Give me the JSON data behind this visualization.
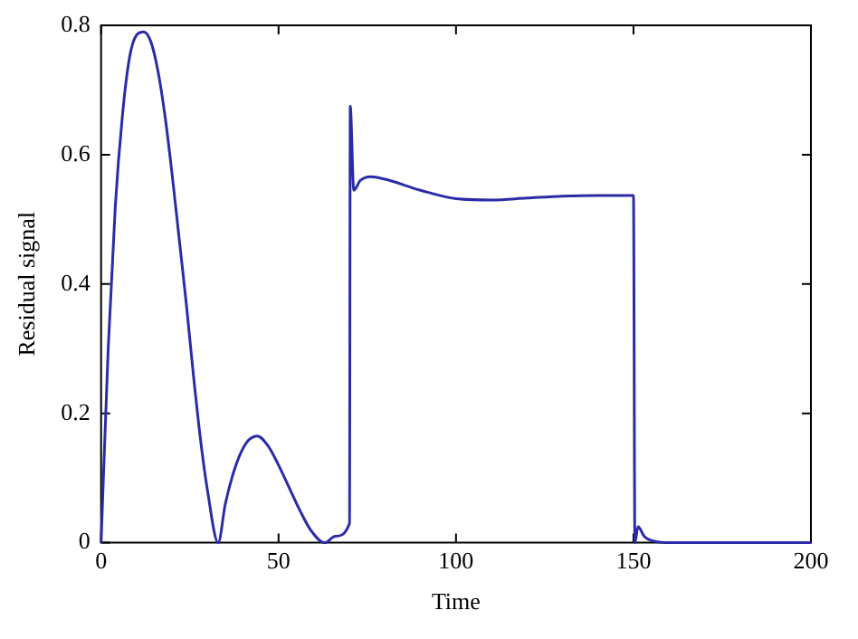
{
  "chart_data": {
    "type": "line",
    "xlabel": "Time",
    "ylabel": "Residual signal",
    "xlim": [
      0,
      200
    ],
    "xticks": [
      0,
      50,
      100,
      150,
      200
    ],
    "ylim": [
      0,
      0.8
    ],
    "yticks": [
      0,
      0.2,
      0.4,
      0.6,
      0.8
    ],
    "grid": false,
    "legend": false,
    "marker": "none",
    "line_style": "solid",
    "series": [
      {
        "color": "#2b2ba8",
        "x": [
          0,
          2,
          4,
          6,
          8,
          10,
          12,
          14,
          16,
          18,
          20,
          22,
          24,
          26,
          28,
          30,
          33,
          35,
          38,
          41,
          44,
          47,
          50,
          53,
          56,
          59,
          63,
          66,
          70,
          70.2,
          71.2,
          73,
          76,
          80,
          90,
          100,
          110,
          120,
          130,
          140,
          150,
          150.4,
          151.3,
          153,
          156,
          160,
          200
        ],
        "values": [
          0,
          0.3,
          0.52,
          0.66,
          0.75,
          0.785,
          0.79,
          0.775,
          0.73,
          0.66,
          0.57,
          0.47,
          0.37,
          0.26,
          0.16,
          0.08,
          0,
          0.06,
          0.12,
          0.155,
          0.165,
          0.15,
          0.12,
          0.085,
          0.05,
          0.02,
          0,
          0.01,
          0.03,
          0.675,
          0.545,
          0.56,
          0.566,
          0.562,
          0.545,
          0.532,
          0.53,
          0.533,
          0.536,
          0.537,
          0.537,
          0,
          0.025,
          0.01,
          0.002,
          0,
          0
        ]
      }
    ]
  }
}
